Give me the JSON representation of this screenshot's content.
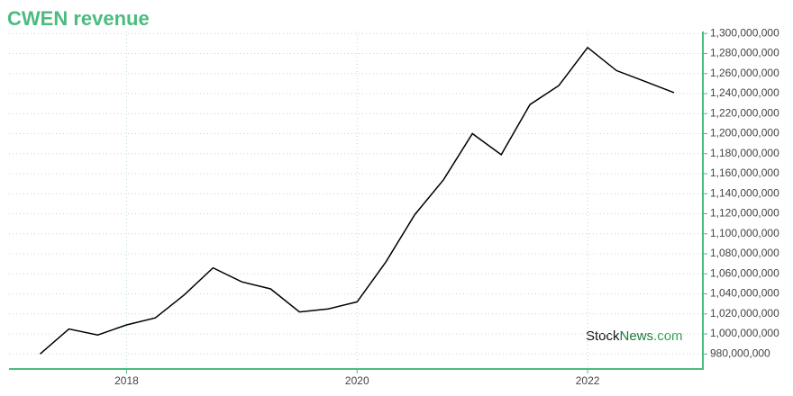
{
  "chart_data": {
    "type": "line",
    "title": "CWEN revenue",
    "x": [
      2017.25,
      2017.5,
      2017.75,
      2018.0,
      2018.25,
      2018.5,
      2018.75,
      2019.0,
      2019.25,
      2019.5,
      2019.75,
      2020.0,
      2020.25,
      2020.5,
      2020.75,
      2021.0,
      2021.25,
      2021.5,
      2021.75,
      2022.0,
      2022.25,
      2022.5,
      2022.75
    ],
    "values": [
      980000000,
      1005000000,
      999000000,
      1009000000,
      1016000000,
      1039000000,
      1066000000,
      1052000000,
      1045000000,
      1022000000,
      1025000000,
      1032000000,
      1072000000,
      1119000000,
      1154000000,
      1200000000,
      1179000000,
      1229000000,
      1248000000,
      1286000000,
      1263000000,
      1252000000,
      1241000000
    ],
    "color": "#000000",
    "xlim": [
      2016.98,
      2023.0
    ],
    "xticks": [
      2018,
      2020,
      2022
    ],
    "ylim": [
      965000000,
      1302000000
    ],
    "yticks": [
      {
        "value": 980000000,
        "label": "980,000,000"
      },
      {
        "value": 1000000000,
        "label": "1,000,000,000"
      },
      {
        "value": 1020000000,
        "label": "1,020,000,000"
      },
      {
        "value": 1040000000,
        "label": "1,040,000,000"
      },
      {
        "value": 1060000000,
        "label": "1,060,000,000"
      },
      {
        "value": 1080000000,
        "label": "1,080,000,000"
      },
      {
        "value": 1100000000,
        "label": "1,100,000,000"
      },
      {
        "value": 1120000000,
        "label": "1,120,000,000"
      },
      {
        "value": 1140000000,
        "label": "1,140,000,000"
      },
      {
        "value": 1160000000,
        "label": "1,160,000,000"
      },
      {
        "value": 1180000000,
        "label": "1,180,000,000"
      },
      {
        "value": 1200000000,
        "label": "1,200,000,000"
      },
      {
        "value": 1220000000,
        "label": "1,220,000,000"
      },
      {
        "value": 1240000000,
        "label": "1,240,000,000"
      },
      {
        "value": 1260000000,
        "label": "1,260,000,000"
      },
      {
        "value": 1280000000,
        "label": "1,280,000,000"
      },
      {
        "value": 1300000000,
        "label": "1,300,000,000"
      }
    ],
    "grid": true,
    "watermark": [
      "Stock",
      "News",
      ".com"
    ]
  }
}
